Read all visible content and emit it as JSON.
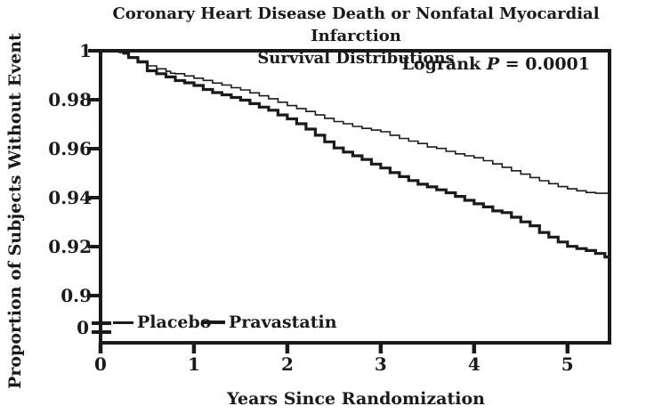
{
  "title": {
    "line1": "Coronary Heart Disease Death or Nonfatal Myocardial Infarction",
    "line2": "Survival Distributions"
  },
  "annotation": {
    "text_before_p": "Logrank ",
    "p_symbol": "P",
    "text_after_p": " = 0.0001"
  },
  "axes": {
    "y": {
      "label": "Proportion of Subjects Without Event",
      "tick_labels": [
        "1",
        "0.98",
        "0.96",
        "0.94",
        "0.92",
        "0.9"
      ],
      "break_label": "0"
    },
    "x": {
      "label": "Years Since Randomization",
      "tick_labels": [
        "0",
        "1",
        "2",
        "3",
        "4",
        "5"
      ]
    }
  },
  "legend": {
    "items": [
      {
        "label": "Placebo",
        "style": "thin"
      },
      {
        "label": "Pravastatin",
        "style": "thick"
      }
    ]
  },
  "colors": {
    "ink": "#1a1a1a",
    "background": "#ffffff"
  },
  "chart_data": {
    "type": "line",
    "subtype": "kaplan-meier-step",
    "title": "Coronary Heart Disease Death or Nonfatal Myocardial Infarction Survival Distributions",
    "xlabel": "Years Since Randomization",
    "ylabel": "Proportion of Subjects Without Event",
    "annotation": "Logrank P = 0.0001",
    "xlim": [
      0,
      5.45
    ],
    "ylim_displayed": [
      0.9,
      1.0
    ],
    "y_axis_break": true,
    "grid": false,
    "legend_position": "inside-bottom-left",
    "x_ticks": [
      0,
      1,
      2,
      3,
      4,
      5
    ],
    "y_ticks": [
      1,
      0.98,
      0.96,
      0.94,
      0.92,
      0.9
    ],
    "y_break_tick": 0,
    "series": [
      {
        "name": "Placebo",
        "line_width": "thin",
        "points": [
          [
            0,
            1.0
          ],
          [
            0.15,
            1.0
          ],
          [
            0.2,
            0.9993
          ],
          [
            0.3,
            0.9975
          ],
          [
            0.4,
            0.9958
          ],
          [
            0.5,
            0.9938
          ],
          [
            0.6,
            0.9926
          ],
          [
            0.7,
            0.9916
          ],
          [
            0.75,
            0.9908
          ],
          [
            0.8,
            0.9906
          ],
          [
            0.9,
            0.9897
          ],
          [
            1.0,
            0.9888
          ],
          [
            1.1,
            0.9879
          ],
          [
            1.2,
            0.9868
          ],
          [
            1.3,
            0.986
          ],
          [
            1.4,
            0.9849
          ],
          [
            1.5,
            0.984
          ],
          [
            1.6,
            0.9828
          ],
          [
            1.7,
            0.9816
          ],
          [
            1.8,
            0.9804
          ],
          [
            1.9,
            0.979
          ],
          [
            2.0,
            0.9776
          ],
          [
            2.1,
            0.9764
          ],
          [
            2.2,
            0.9752
          ],
          [
            2.3,
            0.9738
          ],
          [
            2.4,
            0.9724
          ],
          [
            2.5,
            0.9711
          ],
          [
            2.6,
            0.9702
          ],
          [
            2.7,
            0.9691
          ],
          [
            2.8,
            0.9683
          ],
          [
            2.9,
            0.9676
          ],
          [
            3.0,
            0.9669
          ],
          [
            3.1,
            0.9655
          ],
          [
            3.2,
            0.9642
          ],
          [
            3.3,
            0.9631
          ],
          [
            3.4,
            0.9621
          ],
          [
            3.5,
            0.9607
          ],
          [
            3.6,
            0.9601
          ],
          [
            3.7,
            0.9589
          ],
          [
            3.8,
            0.9579
          ],
          [
            3.9,
            0.9571
          ],
          [
            4.0,
            0.9563
          ],
          [
            4.1,
            0.9551
          ],
          [
            4.2,
            0.9538
          ],
          [
            4.3,
            0.9524
          ],
          [
            4.4,
            0.951
          ],
          [
            4.5,
            0.9496
          ],
          [
            4.6,
            0.9482
          ],
          [
            4.7,
            0.9469
          ],
          [
            4.8,
            0.9457
          ],
          [
            4.9,
            0.9445
          ],
          [
            5.0,
            0.9436
          ],
          [
            5.1,
            0.9428
          ],
          [
            5.2,
            0.9421
          ],
          [
            5.3,
            0.9418
          ],
          [
            5.45,
            0.9414
          ]
        ]
      },
      {
        "name": "Pravastatin",
        "line_width": "thick",
        "points": [
          [
            0,
            1.0
          ],
          [
            0.17,
            1.0
          ],
          [
            0.25,
            0.999
          ],
          [
            0.3,
            0.9972
          ],
          [
            0.4,
            0.9954
          ],
          [
            0.5,
            0.9918
          ],
          [
            0.6,
            0.9906
          ],
          [
            0.7,
            0.9893
          ],
          [
            0.8,
            0.9878
          ],
          [
            0.9,
            0.9869
          ],
          [
            1.0,
            0.9858
          ],
          [
            1.1,
            0.9842
          ],
          [
            1.2,
            0.9829
          ],
          [
            1.3,
            0.982
          ],
          [
            1.4,
            0.9809
          ],
          [
            1.5,
            0.9798
          ],
          [
            1.6,
            0.9784
          ],
          [
            1.7,
            0.977
          ],
          [
            1.8,
            0.9757
          ],
          [
            1.9,
            0.9738
          ],
          [
            2.0,
            0.9722
          ],
          [
            2.1,
            0.9702
          ],
          [
            2.2,
            0.968
          ],
          [
            2.3,
            0.9655
          ],
          [
            2.4,
            0.9628
          ],
          [
            2.5,
            0.9603
          ],
          [
            2.6,
            0.9586
          ],
          [
            2.7,
            0.9571
          ],
          [
            2.8,
            0.9556
          ],
          [
            2.9,
            0.9537
          ],
          [
            3.0,
            0.9521
          ],
          [
            3.1,
            0.9502
          ],
          [
            3.2,
            0.9486
          ],
          [
            3.3,
            0.947
          ],
          [
            3.4,
            0.9455
          ],
          [
            3.5,
            0.9444
          ],
          [
            3.6,
            0.9432
          ],
          [
            3.7,
            0.942
          ],
          [
            3.8,
            0.9405
          ],
          [
            3.9,
            0.9389
          ],
          [
            4.0,
            0.9375
          ],
          [
            4.1,
            0.9362
          ],
          [
            4.2,
            0.9346
          ],
          [
            4.3,
            0.9339
          ],
          [
            4.4,
            0.932
          ],
          [
            4.5,
            0.9301
          ],
          [
            4.6,
            0.9285
          ],
          [
            4.7,
            0.9258
          ],
          [
            4.8,
            0.9239
          ],
          [
            4.9,
            0.9219
          ],
          [
            5.0,
            0.9201
          ],
          [
            5.1,
            0.9192
          ],
          [
            5.2,
            0.9184
          ],
          [
            5.3,
            0.9172
          ],
          [
            5.4,
            0.9158
          ],
          [
            5.45,
            0.9155
          ]
        ]
      }
    ]
  }
}
